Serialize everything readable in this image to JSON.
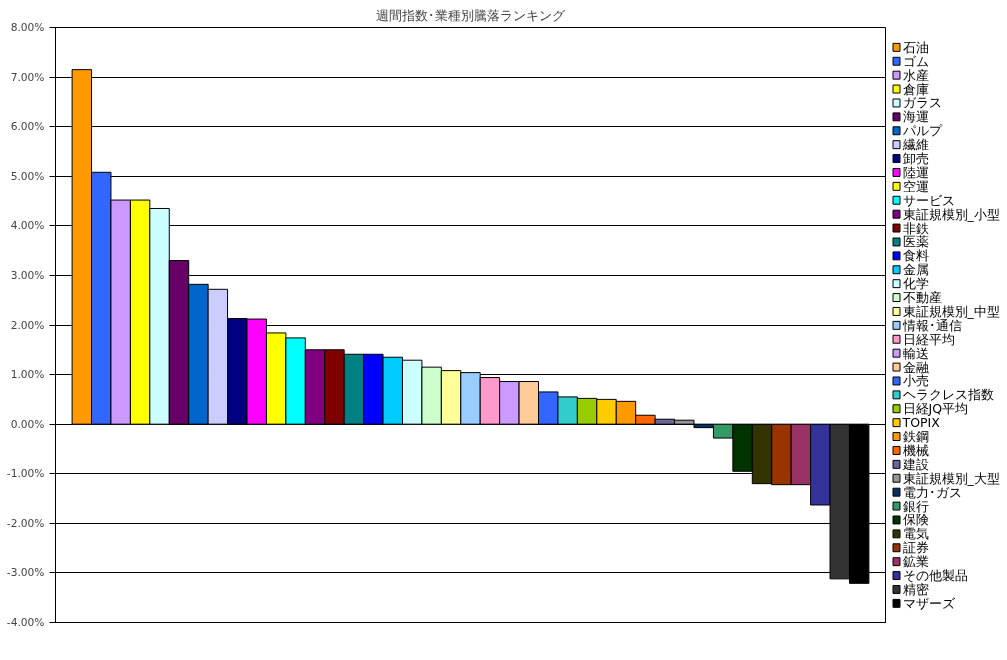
{
  "chart_data": {
    "type": "bar",
    "title": "週間指数･業種別騰落ランキング",
    "categories": [
      null
    ],
    "series": [
      {
        "name": "石油",
        "color": "#ff9900",
        "values": [
          7.15
        ]
      },
      {
        "name": "ゴム",
        "color": "#3366ff",
        "values": [
          5.08
        ]
      },
      {
        "name": "水産",
        "color": "#cc99ff",
        "values": [
          4.52
        ]
      },
      {
        "name": "倉庫",
        "color": "#ffff00",
        "values": [
          4.52
        ]
      },
      {
        "name": "ガラス",
        "color": "#ccffff",
        "values": [
          4.35
        ]
      },
      {
        "name": "海運",
        "color": "#660066",
        "values": [
          3.3
        ]
      },
      {
        "name": "パルプ",
        "color": "#0066cc",
        "values": [
          2.82
        ]
      },
      {
        "name": "繊維",
        "color": "#ccccff",
        "values": [
          2.72
        ]
      },
      {
        "name": "卸売",
        "color": "#000080",
        "values": [
          2.13
        ]
      },
      {
        "name": "陸運",
        "color": "#ff00ff",
        "values": [
          2.12
        ]
      },
      {
        "name": "空運",
        "color": "#ffff00",
        "values": [
          1.84
        ]
      },
      {
        "name": "サービス",
        "color": "#00ffff",
        "values": [
          1.74
        ]
      },
      {
        "name": "東証規模別_小型",
        "color": "#800080",
        "values": [
          1.5
        ]
      },
      {
        "name": "非鉄",
        "color": "#800000",
        "values": [
          1.5
        ]
      },
      {
        "name": "医薬",
        "color": "#008080",
        "values": [
          1.41
        ]
      },
      {
        "name": "食料",
        "color": "#0000ff",
        "values": [
          1.41
        ]
      },
      {
        "name": "金属",
        "color": "#00ccff",
        "values": [
          1.35
        ]
      },
      {
        "name": "化学",
        "color": "#ccffff",
        "values": [
          1.29
        ]
      },
      {
        "name": "不動産",
        "color": "#ccffcc",
        "values": [
          1.15
        ]
      },
      {
        "name": "東証規模別_中型",
        "color": "#ffff99",
        "values": [
          1.08
        ]
      },
      {
        "name": "情報･通信",
        "color": "#99ccff",
        "values": [
          1.04
        ]
      },
      {
        "name": "日経平均",
        "color": "#ff99cc",
        "values": [
          0.94
        ]
      },
      {
        "name": "輸送",
        "color": "#cc99ff",
        "values": [
          0.86
        ]
      },
      {
        "name": "金融",
        "color": "#ffcc99",
        "values": [
          0.86
        ]
      },
      {
        "name": "小売",
        "color": "#3366ff",
        "values": [
          0.65
        ]
      },
      {
        "name": "ヘラクレス指数",
        "color": "#33cccc",
        "values": [
          0.55
        ]
      },
      {
        "name": "日経JQ平均",
        "color": "#99cc00",
        "values": [
          0.52
        ]
      },
      {
        "name": "TOPIX",
        "color": "#ffcc00",
        "values": [
          0.5
        ]
      },
      {
        "name": "鉄鋼",
        "color": "#ff9900",
        "values": [
          0.46
        ]
      },
      {
        "name": "機械",
        "color": "#ff6600",
        "values": [
          0.18
        ]
      },
      {
        "name": "建設",
        "color": "#666699",
        "values": [
          0.1
        ]
      },
      {
        "name": "東証規模別_大型",
        "color": "#969696",
        "values": [
          0.08
        ]
      },
      {
        "name": "電力･ガス",
        "color": "#003366",
        "values": [
          -0.07
        ]
      },
      {
        "name": "銀行",
        "color": "#339966",
        "values": [
          -0.28
        ]
      },
      {
        "name": "保険",
        "color": "#003300",
        "values": [
          -0.95
        ]
      },
      {
        "name": "電気",
        "color": "#333300",
        "values": [
          -1.2
        ]
      },
      {
        "name": "証券",
        "color": "#993300",
        "values": [
          -1.22
        ]
      },
      {
        "name": "鉱業",
        "color": "#993366",
        "values": [
          -1.22
        ]
      },
      {
        "name": "その他製品",
        "color": "#333399",
        "values": [
          -1.63
        ]
      },
      {
        "name": "精密",
        "color": "#333333",
        "values": [
          -3.12
        ]
      },
      {
        "name": "マザーズ",
        "color": "#000000",
        "values": [
          -3.21
        ]
      }
    ],
    "ylim": [
      -4,
      8
    ],
    "yticks": [
      {
        "value": -4,
        "label": "-4.00%"
      },
      {
        "value": -3,
        "label": "-3.00%"
      },
      {
        "value": -2,
        "label": "-2.00%"
      },
      {
        "value": -1,
        "label": "-1.00%"
      },
      {
        "value": 0,
        "label": "0.00%"
      },
      {
        "value": 1,
        "label": "1.00%"
      },
      {
        "value": 2,
        "label": "2.00%"
      },
      {
        "value": 3,
        "label": "3.00%"
      },
      {
        "value": 4,
        "label": "4.00%"
      },
      {
        "value": 5,
        "label": "5.00%"
      },
      {
        "value": 6,
        "label": "6.00%"
      },
      {
        "value": 7,
        "label": "7.00%"
      },
      {
        "value": 8,
        "label": "8.00%"
      }
    ],
    "grid": "y",
    "legend": "right",
    "tick_labels": "y"
  }
}
